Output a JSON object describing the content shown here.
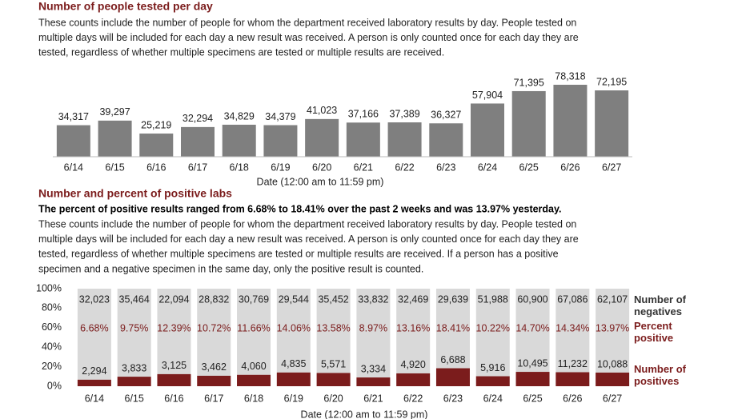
{
  "chart_data": [
    {
      "type": "bar",
      "title": "Number of people tested per day",
      "description": [
        "These counts include the number of people for whom the department received laboratory results by day. People tested on",
        "multiple days will be included for each day a new result was received. A person is only counted once for each day they are",
        "tested, regardless of whether multiple specimens are tested or multiple results are received."
      ],
      "categories": [
        "6/14",
        "6/15",
        "6/16",
        "6/17",
        "6/18",
        "6/19",
        "6/20",
        "6/21",
        "6/22",
        "6/23",
        "6/24",
        "6/25",
        "6/26",
        "6/27"
      ],
      "values": [
        34317,
        39297,
        25219,
        32294,
        34829,
        34379,
        41023,
        37166,
        37389,
        36327,
        57904,
        71395,
        78318,
        72195
      ],
      "value_labels": [
        "34,317",
        "39,297",
        "25,219",
        "32,294",
        "34,829",
        "34,379",
        "41,023",
        "37,166",
        "37,389",
        "36,327",
        "57,904",
        "71,395",
        "78,318",
        "72,195"
      ],
      "color": "#7f7f7f",
      "x_label": "Date (12:00 am to 11:59 pm)"
    },
    {
      "type": "stacked_percent",
      "title": "Number and percent of positive labs",
      "subtitle": "The percent of positive results ranged from 6.68% to 18.41% over the past 2 weeks and was 13.97% yesterday.",
      "description": [
        "These counts include the number of people for whom the department received laboratory results by day. People tested on",
        "multiple days will be included for each day a new result was received. A person is only counted once for each day they are",
        "tested, regardless of whether multiple specimens are tested or multiple results are received. If a person has a positive",
        "specimen and a negative specimen in the same day, only the positive result is counted."
      ],
      "categories": [
        "6/14",
        "6/15",
        "6/16",
        "6/17",
        "6/18",
        "6/19",
        "6/20",
        "6/21",
        "6/22",
        "6/23",
        "6/24",
        "6/25",
        "6/26",
        "6/27"
      ],
      "series": [
        {
          "name": "Number of negatives",
          "color": "#d9d9d9",
          "values": [
            32023,
            35464,
            22094,
            28832,
            30769,
            29544,
            35452,
            33832,
            32469,
            29639,
            51988,
            60900,
            67086,
            62107
          ],
          "value_labels": [
            "32,023",
            "35,464",
            "22,094",
            "28,832",
            "30,769",
            "29,544",
            "35,452",
            "33,832",
            "32,469",
            "29,639",
            "51,988",
            "60,900",
            "67,086",
            "62,107"
          ]
        },
        {
          "name": "Percent positive",
          "color": "#7b1c1c",
          "values": [
            6.68,
            9.75,
            12.39,
            10.72,
            11.66,
            14.06,
            13.58,
            8.97,
            13.16,
            18.41,
            10.22,
            14.7,
            14.34,
            13.97
          ],
          "value_labels": [
            "6.68%",
            "9.75%",
            "12.39%",
            "10.72%",
            "11.66%",
            "14.06%",
            "13.58%",
            "8.97%",
            "13.16%",
            "18.41%",
            "10.22%",
            "14.70%",
            "14.34%",
            "13.97%"
          ]
        },
        {
          "name": "Number of positives",
          "color": "#7b1c1c",
          "values": [
            2294,
            3833,
            3125,
            3462,
            4060,
            4835,
            5571,
            3334,
            4920,
            6688,
            5916,
            10495,
            11232,
            10088
          ],
          "value_labels": [
            "2,294",
            "3,833",
            "3,125",
            "3,462",
            "4,060",
            "4,835",
            "5,571",
            "3,334",
            "4,920",
            "6,688",
            "5,916",
            "10,495",
            "11,232",
            "10,088"
          ]
        }
      ],
      "ylim": [
        0,
        100
      ],
      "yticks": [
        {
          "value": 0,
          "label": "0%"
        },
        {
          "value": 20,
          "label": "20%"
        },
        {
          "value": 40,
          "label": "40%"
        },
        {
          "value": 60,
          "label": "60%"
        },
        {
          "value": 80,
          "label": "80%"
        },
        {
          "value": 100,
          "label": "100%"
        }
      ],
      "x_label": "Date (12:00 am to 11:59 pm)"
    }
  ]
}
